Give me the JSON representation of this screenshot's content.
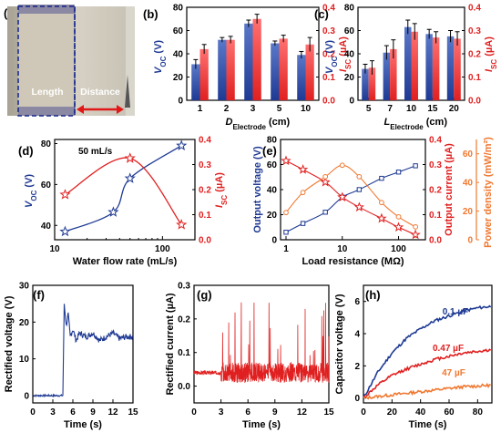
{
  "colors": {
    "blue": "#1f3a93",
    "red": "#e02020",
    "orange": "#f07830",
    "bar_top_blue": "#5a78c8",
    "bar_top_red": "#ff7070"
  },
  "panel_labels": [
    "(a)",
    "(b)",
    "(c)",
    "(d)",
    "(e)",
    "(f)",
    "(g)",
    "(h)"
  ],
  "schematic": {
    "length_label": "Length",
    "distance_label": "Distance"
  },
  "chart_data": [
    {
      "id": "b",
      "type": "bar",
      "categories": [
        "1",
        "2",
        "3",
        "5",
        "10"
      ],
      "xlabel": "D",
      "xlabel_sub": "Electrode",
      "xlabel_unit": " (cm)",
      "ylabel_left": "V",
      "ylabel_left_sub": "OC",
      "ylabel_left_unit": " (V)",
      "ylabel_right": "I",
      "ylabel_right_sub": "SC",
      "ylabel_right_unit": " (µA)",
      "ylim_left": [
        0,
        80
      ],
      "yticks_left": [
        "0",
        "20",
        "40",
        "60",
        "80"
      ],
      "ylim_right": [
        0,
        0.4
      ],
      "yticks_right": [
        "0.0",
        "0.1",
        "0.2",
        "0.3",
        "0.4"
      ],
      "series": [
        {
          "axis": "left",
          "values": [
            31,
            52,
            66,
            49,
            39
          ],
          "errors": [
            4,
            2,
            3,
            2,
            3
          ]
        },
        {
          "axis": "right",
          "values": [
            0.22,
            0.26,
            0.35,
            0.265,
            0.24
          ],
          "errors": [
            0.02,
            0.015,
            0.02,
            0.015,
            0.03
          ]
        }
      ]
    },
    {
      "id": "c",
      "type": "bar",
      "categories": [
        "5",
        "7",
        "10",
        "15",
        "20"
      ],
      "xlabel": "L",
      "xlabel_sub": "Electrode",
      "xlabel_unit": " (cm)",
      "ylabel_left": "V",
      "ylabel_left_sub": "OC",
      "ylabel_left_unit": " (V)",
      "ylabel_right": "I",
      "ylabel_right_sub": "SC",
      "ylabel_right_unit": " (µA)",
      "ylim_left": [
        0,
        80
      ],
      "yticks_left": [
        "0",
        "20",
        "40",
        "60",
        "80"
      ],
      "ylim_right": [
        0,
        0.4
      ],
      "yticks_right": [
        "0.0",
        "0.1",
        "0.2",
        "0.3",
        "0.4"
      ],
      "series": [
        {
          "axis": "left",
          "values": [
            27,
            41,
            63,
            57,
            55
          ],
          "errors": [
            4,
            6,
            6,
            4,
            5
          ]
        },
        {
          "axis": "right",
          "values": [
            0.14,
            0.22,
            0.295,
            0.27,
            0.265
          ],
          "errors": [
            0.03,
            0.04,
            0.035,
            0.025,
            0.03
          ]
        }
      ]
    },
    {
      "id": "d",
      "type": "line",
      "xlabel": "Water flow rate (mL/s)",
      "ylabel_left": "V",
      "ylabel_left_sub": "OC",
      "ylabel_left_unit": " (V)",
      "ylabel_right": "I",
      "ylabel_right_sub": "SC",
      "ylabel_right_unit": " (µA)",
      "xscale": "log",
      "xlim": [
        10,
        200
      ],
      "xticks": [
        {
          "v": 10,
          "l": "10"
        },
        {
          "v": 100,
          "l": "100"
        }
      ],
      "ylim_left": [
        33,
        82
      ],
      "yticks_left": [
        40,
        60,
        80
      ],
      "ylim_right": [
        0,
        0.4
      ],
      "yticks_right": [
        "0.0",
        "0.1",
        "0.2",
        "0.3",
        "0.4"
      ],
      "annotation": "50 mL/s",
      "series": [
        {
          "axis": "left",
          "marker": "star",
          "x": [
            12.5,
            35,
            50,
            150
          ],
          "y": [
            37,
            46.5,
            63,
            79
          ]
        },
        {
          "axis": "right",
          "marker": "star",
          "x": [
            12.5,
            50,
            150
          ],
          "y": [
            0.18,
            0.325,
            0.06
          ]
        }
      ]
    },
    {
      "id": "e",
      "type": "line",
      "xlabel": "Load resistance (MΩ)",
      "ylabel_left": "Output voltage (V)",
      "ylabel_right": "Output current (µA)",
      "ylabel_right2": "Power density (mW/m²)",
      "xscale": "log",
      "xlim": [
        0.8,
        300
      ],
      "xticks": [
        {
          "v": 1,
          "l": "1"
        },
        {
          "v": 10,
          "l": "10"
        },
        {
          "v": 100,
          "l": "100"
        }
      ],
      "ylim_left": [
        0,
        80
      ],
      "yticks_left": [
        "0",
        "20",
        "40",
        "60",
        "80"
      ],
      "ylim_right": [
        0,
        0.4
      ],
      "yticks_right": [
        "0.0",
        "0.1",
        "0.2",
        "0.3",
        "0.4"
      ],
      "ylim_right2": [
        0,
        70
      ],
      "yticks_right2": [
        "0",
        "20",
        "40",
        "60"
      ],
      "series": [
        {
          "axis": "left",
          "marker": "square",
          "x": [
            1,
            2,
            5,
            10,
            20,
            50,
            100,
            200
          ],
          "y": [
            6,
            13,
            22,
            34,
            40,
            49,
            54,
            59
          ]
        },
        {
          "axis": "right",
          "marker": "star",
          "x": [
            1,
            2,
            5,
            10,
            20,
            50,
            100,
            200
          ],
          "y": [
            0.315,
            0.28,
            0.23,
            0.17,
            0.13,
            0.085,
            0.05,
            0.02
          ]
        },
        {
          "axis": "right2",
          "marker": "circle",
          "x": [
            1,
            2,
            5,
            10,
            20,
            50,
            100,
            200
          ],
          "y": [
            19,
            33,
            44,
            52,
            44,
            26,
            16,
            9
          ]
        }
      ]
    },
    {
      "id": "f",
      "type": "line",
      "xlabel": "Time (s)",
      "ylabel": "Rectified voltage (V)",
      "xlim": [
        0,
        15
      ],
      "xticks": [
        "0",
        "3",
        "6",
        "9",
        "12",
        "15"
      ],
      "ylim": [
        -2,
        30
      ],
      "yticks": [
        "0",
        "10",
        "20",
        "30"
      ],
      "series": [
        {
          "x": [
            0,
            4.5,
            4.7,
            5.0,
            5.3,
            5.6,
            6.0,
            6.5,
            7,
            8,
            9,
            10,
            11,
            12,
            13,
            14,
            15
          ],
          "y": [
            0,
            0,
            25,
            19,
            22,
            16,
            18,
            15,
            17,
            16,
            17,
            15,
            16,
            17,
            15.5,
            16,
            16
          ]
        }
      ]
    },
    {
      "id": "g",
      "type": "line",
      "xlabel": "Time (s)",
      "ylabel": "Rectified current (µA)",
      "xlim": [
        0,
        15
      ],
      "xticks": [
        "0",
        "3",
        "6",
        "9",
        "12",
        "15"
      ],
      "ylim": [
        -0.05,
        0.3
      ],
      "yticks": [
        "0.0",
        "0.1",
        "0.2",
        "0.3"
      ],
      "series": [
        {
          "baseline": 0.04,
          "noise": 0.03,
          "start": 3,
          "burst_max": 0.25
        }
      ]
    },
    {
      "id": "h",
      "type": "line",
      "xlabel": "Time (s)",
      "ylabel": "Capacitor voltage (V)",
      "xlim": [
        0,
        90
      ],
      "xticks": [
        "0",
        "20",
        "40",
        "60",
        "80"
      ],
      "ylim": [
        -0.3,
        7
      ],
      "yticks": [
        "0",
        "2",
        "4",
        "6"
      ],
      "series": [
        {
          "name": "0.1 µF",
          "x": [
            0,
            10,
            20,
            30,
            40,
            50,
            60,
            70,
            80,
            90
          ],
          "y": [
            0,
            1.6,
            2.8,
            3.7,
            4.3,
            4.8,
            5.1,
            5.4,
            5.6,
            5.7
          ]
        },
        {
          "name": "0.47 µF",
          "x": [
            0,
            10,
            20,
            30,
            40,
            50,
            60,
            70,
            80,
            90
          ],
          "y": [
            0,
            0.8,
            1.4,
            1.8,
            2.1,
            2.4,
            2.6,
            2.8,
            2.9,
            3.0
          ]
        },
        {
          "name": "47 µF",
          "x": [
            0,
            10,
            20,
            30,
            40,
            50,
            60,
            70,
            80,
            90
          ],
          "y": [
            0,
            0.1,
            0.2,
            0.3,
            0.4,
            0.5,
            0.6,
            0.7,
            0.75,
            0.8
          ]
        }
      ]
    }
  ]
}
